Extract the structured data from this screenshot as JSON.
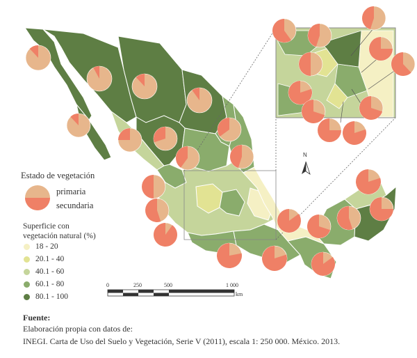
{
  "legend": {
    "title": "Estado de vegetación",
    "primary_label": "primaria",
    "secondary_label": "secundaria",
    "pct_title_line1": "Superficie con",
    "pct_title_line2": "vegetación natural (%)",
    "classes": [
      {
        "label": "18 - 20",
        "color": "#f5f0c4"
      },
      {
        "label": "20.1 - 40",
        "color": "#e2e393"
      },
      {
        "label": "40.1 - 60",
        "color": "#c5d59b"
      },
      {
        "label": "60.1 - 80",
        "color": "#8aac6c"
      },
      {
        "label": "80.1 - 100",
        "color": "#5e7e44"
      }
    ]
  },
  "colors": {
    "primary": "#e7b68c",
    "secondary": "#ef8066",
    "border": "#ffffff",
    "frame": "#888888"
  },
  "scale": {
    "ticks": [
      "0",
      "250",
      "500",
      "1 000"
    ],
    "unit": "km"
  },
  "north_label": "N",
  "source": {
    "heading": "Fuente:",
    "line1": "Elaboración propia con datos de:",
    "line2": "INEGI. Carta de Uso del Suelo y Vegetación, Serie V (2011), escala 1: 250 000. México. 2013."
  }
}
